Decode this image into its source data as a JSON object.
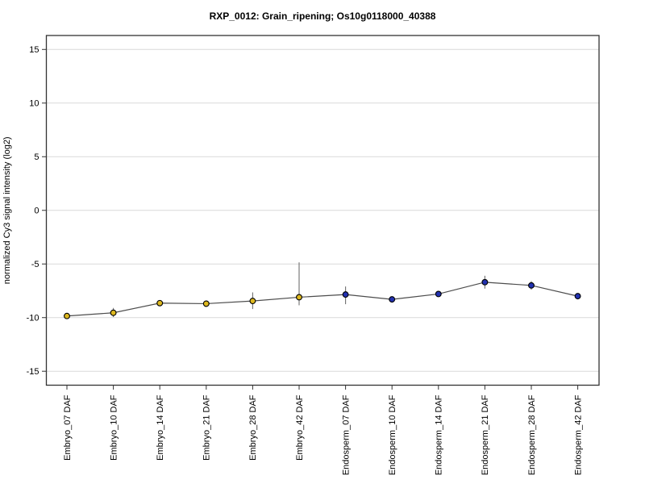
{
  "figure": {
    "background": "#ffffff"
  },
  "chart_data": {
    "type": "line",
    "title": "RXP_0012: Grain_ripening; Os10g0118000_40388",
    "ylabel": "normalized Cy3 signal intensity (log2)",
    "xlabel": "",
    "ylim": [
      -16.3,
      16.3
    ],
    "yticks": [
      15,
      10,
      5,
      0,
      -5,
      -10,
      -15
    ],
    "grid": "horizontal-gridlines",
    "legend": "none",
    "x_label_rotation": -90,
    "marker_style": "filled-circle-black-outline",
    "categories": [
      "Embryo_07 DAF",
      "Embryo_10 DAF",
      "Embryo_14 DAF",
      "Embryo_21 DAF",
      "Embryo_28 DAF",
      "Embryo_42 DAF",
      "Endosperm_07 DAF",
      "Endosperm_10 DAF",
      "Endosperm_14 DAF",
      "Endosperm_21 DAF",
      "Endosperm_28 DAF",
      "Endosperm_42 DAF"
    ],
    "series": [
      {
        "name": "normalized Cy3 signal intensity (log2)",
        "values": [
          -9.85,
          -9.55,
          -8.65,
          -8.7,
          -8.45,
          -8.1,
          -7.85,
          -8.3,
          -7.8,
          -6.7,
          -7.0,
          -8.0
        ],
        "err_low": [
          -9.85,
          -9.95,
          -8.65,
          -9.0,
          -9.2,
          -8.85,
          -8.75,
          -8.5,
          -8.05,
          -7.3,
          -7.4,
          -8.0
        ],
        "err_high": [
          -9.85,
          -9.1,
          -8.65,
          -8.4,
          -7.65,
          -4.85,
          -7.1,
          -8.1,
          -7.5,
          -6.1,
          -6.6,
          -8.0
        ],
        "point_groups": [
          "embryo",
          "embryo",
          "embryo",
          "embryo",
          "embryo",
          "embryo",
          "endosperm",
          "endosperm",
          "endosperm",
          "endosperm",
          "endosperm",
          "endosperm"
        ]
      }
    ],
    "colors": {
      "embryo_point": "#ddb81f",
      "endosperm_point": "#2231b0",
      "point_outline": "#000000",
      "line": "#4d4d4d",
      "error_bar": "#6e6e6e",
      "gridline": "#d9d9d9",
      "axis": "#333333",
      "text": "#000000",
      "background": "#ffffff"
    }
  }
}
